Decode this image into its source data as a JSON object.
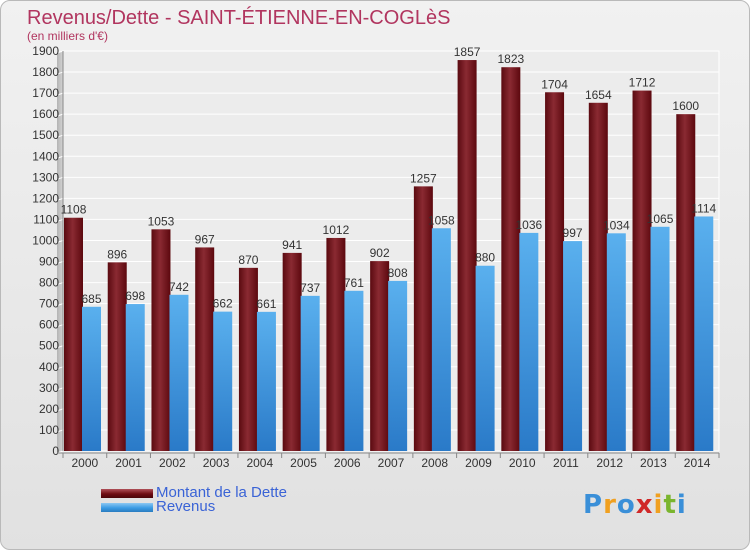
{
  "header": {
    "title": "Revenus/Dette - SAINT-ÉTIENNE-EN-COGLèS",
    "subtitle": "(en milliers d'€)"
  },
  "legend": {
    "items": [
      {
        "label": "Montant de la Dette",
        "color": "#6e0c12"
      },
      {
        "label": "Revenus",
        "color": "#3a9be4"
      }
    ]
  },
  "logo": {
    "letters": [
      {
        "ch": "P",
        "color": "#3a8fd8"
      },
      {
        "ch": "r",
        "color": "#f0a020"
      },
      {
        "ch": "o",
        "color": "#3a8fd8"
      },
      {
        "ch": "x",
        "color": "#d02828"
      },
      {
        "ch": "i",
        "color": "#f0a020"
      },
      {
        "ch": "t",
        "color": "#7ab52e"
      },
      {
        "ch": "i",
        "color": "#3a8fd8"
      }
    ]
  },
  "chart_data": {
    "type": "bar",
    "categories": [
      "2000",
      "2001",
      "2002",
      "2003",
      "2004",
      "2005",
      "2006",
      "2007",
      "2008",
      "2009",
      "2010",
      "2011",
      "2012",
      "2013",
      "2014"
    ],
    "series": [
      {
        "name": "Montant de la Dette",
        "color": "#6e0c12",
        "values": [
          1108,
          896,
          1053,
          967,
          870,
          941,
          1012,
          902,
          1257,
          1857,
          1823,
          1704,
          1654,
          1712,
          1600
        ]
      },
      {
        "name": "Revenus",
        "color": "#3a9be4",
        "values": [
          685,
          698,
          742,
          662,
          661,
          737,
          761,
          808,
          1058,
          880,
          1036,
          997,
          1034,
          1065,
          1114
        ]
      }
    ],
    "ylim": [
      0,
      1900
    ],
    "ytick_step": 100,
    "grid": true,
    "legend_position": "bottom-left"
  }
}
